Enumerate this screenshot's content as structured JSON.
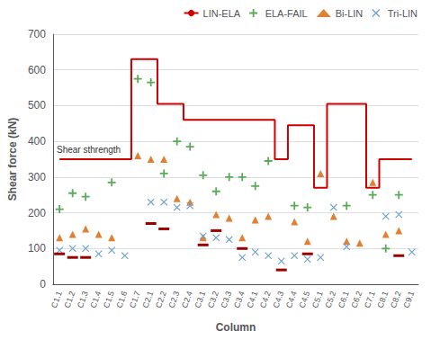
{
  "chart_data": {
    "type": "line",
    "xlabel": "Column",
    "ylabel": "Shear force (kN)",
    "annotation": "Shear sthrength",
    "categories": [
      "C1.1",
      "C1.2",
      "C1.3",
      "C1.4",
      "C1.5",
      "C1.6",
      "C1.7",
      "C2.1",
      "C2.2",
      "C2.3",
      "C2.4",
      "C3.1",
      "C3.2",
      "C3.3",
      "C3.4",
      "C4.1",
      "C4.2",
      "C4.3",
      "C4.4",
      "C4.5",
      "C5.1",
      "C5.2",
      "C6.1",
      "C6.2",
      "C7.1",
      "C8.1",
      "C8.2",
      "C9.1"
    ],
    "series": [
      {
        "name": "LIN-ELA",
        "type": "step",
        "color": "#cc0000",
        "values": [
          350,
          350,
          350,
          350,
          350,
          350,
          630,
          630,
          505,
          505,
          460,
          460,
          460,
          460,
          460,
          460,
          460,
          350,
          445,
          445,
          270,
          505,
          505,
          505,
          270,
          350,
          350,
          350
        ]
      },
      {
        "name": "ELA-FAIL",
        "type": "scatter",
        "marker": "plus",
        "color": "#5aaa5a",
        "values": [
          210,
          255,
          245,
          null,
          285,
          null,
          575,
          565,
          310,
          400,
          385,
          305,
          260,
          300,
          300,
          275,
          345,
          null,
          220,
          215,
          null,
          null,
          220,
          null,
          250,
          100,
          250,
          null
        ]
      },
      {
        "name": "Bi-LIN",
        "type": "scatter",
        "marker": "triangle",
        "color": "#e08030",
        "values": [
          130,
          140,
          155,
          140,
          130,
          null,
          360,
          350,
          350,
          240,
          230,
          130,
          195,
          185,
          130,
          180,
          190,
          null,
          175,
          120,
          310,
          190,
          120,
          115,
          285,
          140,
          150,
          null
        ]
      },
      {
        "name": "Tri-LIN",
        "type": "scatter",
        "marker": "x",
        "color": "#70a0d0",
        "values": [
          95,
          100,
          100,
          85,
          95,
          80,
          null,
          230,
          230,
          215,
          220,
          135,
          130,
          125,
          75,
          90,
          80,
          65,
          80,
          70,
          75,
          215,
          105,
          null,
          null,
          190,
          195,
          90
        ]
      },
      {
        "type": "scatter",
        "marker": "dash",
        "color": "#990000",
        "values": [
          85,
          75,
          75,
          null,
          null,
          null,
          null,
          170,
          155,
          null,
          null,
          110,
          150,
          null,
          100,
          null,
          null,
          40,
          null,
          85,
          null,
          null,
          null,
          null,
          null,
          null,
          80,
          null
        ]
      }
    ],
    "ylim": [
      0,
      700
    ],
    "yticks": [
      0,
      100,
      200,
      300,
      400,
      500,
      600,
      700
    ],
    "grid": true,
    "legend": "upper right"
  }
}
